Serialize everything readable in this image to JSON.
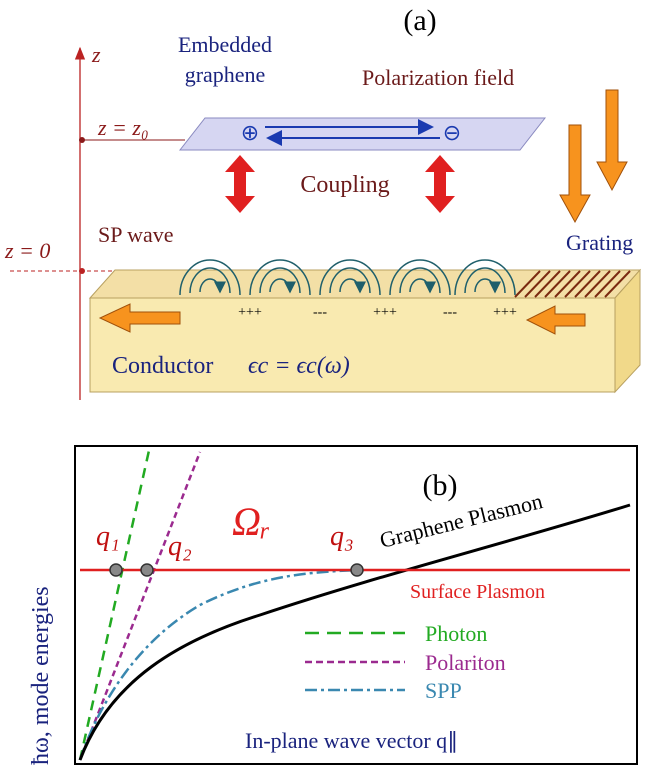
{
  "panel_a": {
    "label": "(a)",
    "z_axis": "z",
    "z_level_graphene": "z = z₀",
    "z_level_surface": "z = 0",
    "graphene": "Embedded graphene",
    "polarization": "Polarization field",
    "plus_charge": "⊕",
    "minus_charge": "⊖",
    "coupling": "Coupling",
    "sp_wave": "SP wave",
    "grating": "Grating",
    "conductor": "Conductor",
    "permittivity": "ϵc = ϵc(ω)",
    "surface_charges": [
      "+++",
      "---",
      "+++",
      "---",
      "+++"
    ]
  },
  "panel_b": {
    "label": "(b)",
    "y_axis": "ħω,  mode energies",
    "x_axis": "In-plane wave vector  q∥",
    "q_points": [
      "q₁",
      "q₂",
      "q₃"
    ],
    "rabi": "Ωᵣ",
    "graphene_plasmon": "Graphene  Plasmon",
    "surface_plasmon": "Surface Plasmon",
    "legend": [
      "Photon",
      "Polariton",
      "SPP"
    ]
  }
}
